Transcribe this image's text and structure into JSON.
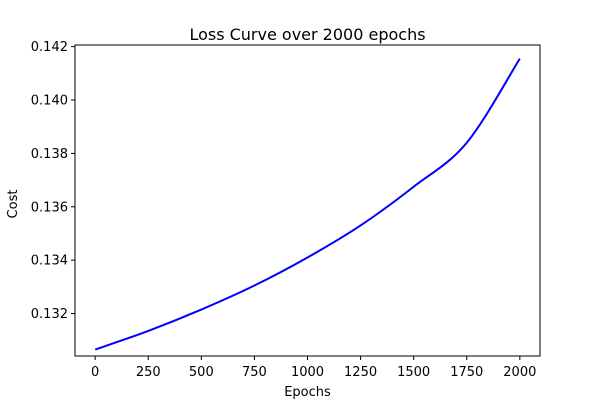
{
  "chart_data": {
    "type": "line",
    "title": "Loss Curve over 2000 epochs",
    "xlabel": "Epochs",
    "ylabel": "Cost",
    "xlim": [
      -95,
      2095
    ],
    "ylim": [
      0.13041,
      0.14206
    ],
    "xticks": [
      0,
      250,
      500,
      750,
      1000,
      1250,
      1500,
      1750,
      2000
    ],
    "xtick_labels": [
      "0",
      "250",
      "500",
      "750",
      "1000",
      "1250",
      "1500",
      "1750",
      "2000"
    ],
    "yticks": [
      0.132,
      0.134,
      0.136,
      0.138,
      0.14,
      0.142
    ],
    "ytick_labels": [
      "0.132",
      "0.134",
      "0.136",
      "0.138",
      "0.140",
      "0.142"
    ],
    "grid": false,
    "series": [
      {
        "color": "#0000ff",
        "x": [
          0,
          250,
          500,
          750,
          1000,
          1250,
          1500,
          1750,
          2000
        ],
        "y": [
          0.13065,
          0.13135,
          0.13215,
          0.13305,
          0.1341,
          0.1353,
          0.13675,
          0.1384,
          0.14155
        ]
      }
    ]
  }
}
